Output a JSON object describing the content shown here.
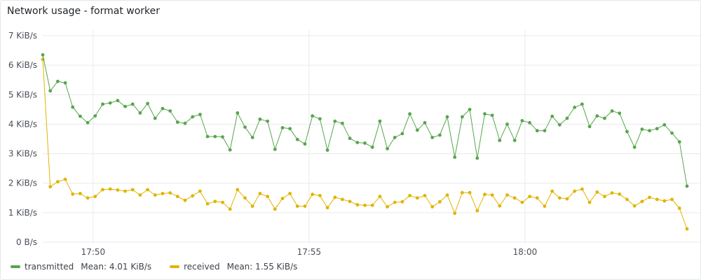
{
  "panel": {
    "title": "Network usage - format worker"
  },
  "colors": {
    "transmitted": "#56a64b",
    "received": "#e0b400",
    "grid": "#e9eaec"
  },
  "chart_data": {
    "type": "line",
    "title": "Network usage - format worker",
    "xlabel": "",
    "ylabel": "",
    "ylim": [
      0,
      7
    ],
    "y_unit": "KiB/s",
    "yticks": [
      0,
      1,
      2,
      3,
      4,
      5,
      6,
      7
    ],
    "ytick_labels": [
      "0 B/s",
      "1 KiB/s",
      "2 KiB/s",
      "3 KiB/s",
      "4 KiB/s",
      "5 KiB/s",
      "6 KiB/s",
      "7 KiB/s"
    ],
    "xlim": [
      "17:48:50",
      "18:03:45"
    ],
    "xticks": [
      "17:50",
      "17:55",
      "18:00"
    ],
    "grid": true,
    "legend_position": "bottom-left",
    "series": [
      {
        "name": "transmitted",
        "mean_label": "Mean: 4.01 KiB/s",
        "values": [
          6.35,
          5.13,
          5.45,
          5.4,
          4.58,
          4.27,
          4.05,
          4.28,
          4.68,
          4.72,
          4.8,
          4.6,
          4.68,
          4.38,
          4.7,
          4.2,
          4.53,
          4.45,
          4.07,
          4.03,
          4.25,
          4.33,
          3.58,
          3.58,
          3.57,
          3.13,
          4.38,
          3.9,
          3.55,
          4.17,
          4.1,
          3.15,
          3.88,
          3.85,
          3.48,
          3.33,
          4.28,
          4.18,
          3.12,
          4.1,
          4.03,
          3.52,
          3.38,
          3.36,
          3.22,
          4.1,
          3.17,
          3.55,
          3.68,
          4.35,
          3.8,
          4.05,
          3.55,
          3.63,
          4.25,
          2.88,
          4.25,
          4.5,
          2.85,
          4.35,
          4.3,
          3.45,
          4.0,
          3.45,
          4.12,
          4.05,
          3.78,
          3.78,
          4.27,
          3.98,
          4.2,
          4.57,
          4.68,
          3.92,
          4.28,
          4.2,
          4.45,
          4.37,
          3.75,
          3.22,
          3.83,
          3.78,
          3.85,
          3.98,
          3.7,
          3.4,
          1.9
        ]
      },
      {
        "name": "received",
        "mean_label": "Mean: 1.55 KiB/s",
        "values": [
          6.2,
          1.88,
          2.05,
          2.13,
          1.63,
          1.65,
          1.5,
          1.55,
          1.78,
          1.8,
          1.77,
          1.73,
          1.78,
          1.6,
          1.78,
          1.6,
          1.65,
          1.67,
          1.55,
          1.42,
          1.57,
          1.73,
          1.3,
          1.38,
          1.35,
          1.12,
          1.78,
          1.5,
          1.22,
          1.65,
          1.55,
          1.12,
          1.48,
          1.65,
          1.22,
          1.22,
          1.62,
          1.58,
          1.17,
          1.52,
          1.45,
          1.38,
          1.27,
          1.25,
          1.25,
          1.55,
          1.2,
          1.35,
          1.37,
          1.58,
          1.5,
          1.58,
          1.2,
          1.37,
          1.6,
          0.98,
          1.68,
          1.68,
          1.07,
          1.62,
          1.6,
          1.23,
          1.6,
          1.5,
          1.35,
          1.55,
          1.5,
          1.22,
          1.73,
          1.5,
          1.47,
          1.73,
          1.8,
          1.35,
          1.7,
          1.55,
          1.67,
          1.63,
          1.45,
          1.23,
          1.38,
          1.52,
          1.45,
          1.4,
          1.45,
          1.15,
          0.45
        ]
      }
    ]
  }
}
